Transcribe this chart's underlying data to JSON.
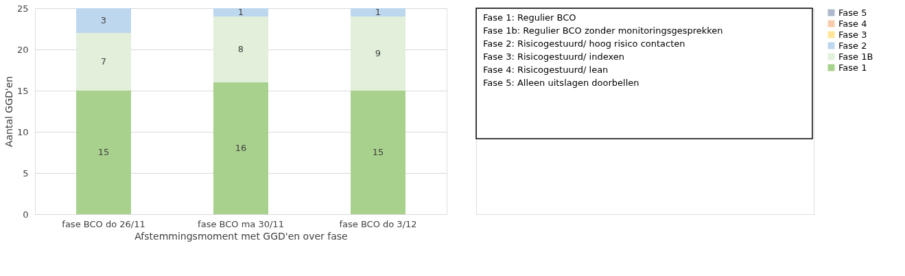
{
  "chart_data": {
    "type": "bar",
    "stacked": true,
    "xlabel": "Afstemmingsmoment met GGD'en over fase",
    "ylabel": "Aantal GGD'en",
    "categories": [
      "fase BCO do 26/11",
      "fase BCO ma 30/11",
      "fase BCO do 3/12"
    ],
    "series": [
      {
        "name": "Fase 1",
        "color": "#a9d18e",
        "values": [
          15,
          16,
          15
        ],
        "value_labels": [
          "15",
          "16",
          "15"
        ]
      },
      {
        "name": "Fase 1B",
        "color": "#e2efda",
        "values": [
          7,
          8,
          9
        ],
        "value_labels": [
          "7",
          "8",
          "9"
        ]
      },
      {
        "name": "Fase 2",
        "color": "#bdd7ee",
        "values": [
          3,
          1,
          1
        ],
        "value_labels": [
          "3",
          "1",
          "1"
        ]
      },
      {
        "name": "Fase 3",
        "color": "#ffe699",
        "values": [
          0,
          0,
          0
        ],
        "value_labels": [
          null,
          null,
          null
        ]
      },
      {
        "name": "Fase 4",
        "color": "#f8cbad",
        "values": [
          0,
          0,
          0
        ],
        "value_labels": [
          null,
          null,
          null
        ]
      },
      {
        "name": "Fase 5",
        "color": "#adb9ca",
        "values": [
          0,
          0,
          0
        ],
        "value_labels": [
          null,
          null,
          null
        ]
      }
    ],
    "ylim": [
      0,
      25
    ],
    "yticks": [
      0,
      5,
      10,
      15,
      20,
      25
    ],
    "grid": "y",
    "legend": "right",
    "annotations": [
      "Fase 1: Regulier BCO",
      "Fase 1b: Regulier BCO zonder monitoringsgesprekken",
      "Fase 2: Risicogestuurd/ hoog risico contacten",
      "Fase 3: Risicogestuurd/ indexen",
      "Fase 4: Risicogestuurd/ lean",
      "Fase 5: Alleen uitslagen doorbellen"
    ]
  }
}
